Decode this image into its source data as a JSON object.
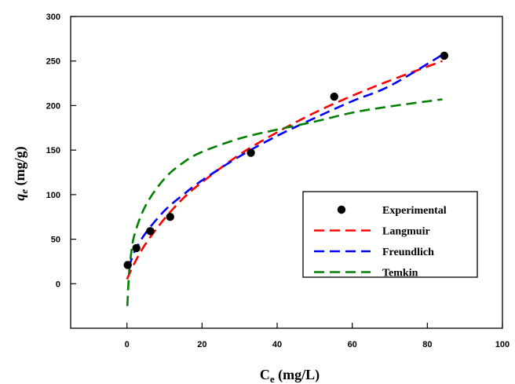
{
  "chart_data": {
    "type": "scatter",
    "title": "",
    "xlabel": {
      "main": "C",
      "sub": "e",
      "unit": " (mg/L)"
    },
    "ylabel": {
      "main": "q",
      "sub": "e",
      "unit": " (mg/g)"
    },
    "xlim": [
      -15,
      100
    ],
    "ylim": [
      -50,
      300
    ],
    "xticks": [
      0,
      20,
      40,
      60,
      80,
      100
    ],
    "yticks": [
      0,
      50,
      100,
      150,
      200,
      250,
      300
    ],
    "grid": false,
    "legend_position": "lower-right",
    "series": [
      {
        "name": "Experimental",
        "kind": "scatter",
        "color": "#000000",
        "x": [
          0.2,
          2.5,
          6.2,
          11.5,
          33.0,
          55.2,
          84.5
        ],
        "y": [
          21,
          40,
          59,
          75,
          147,
          210,
          256
        ]
      },
      {
        "name": "Langmuir",
        "kind": "dashed-line",
        "color": "#ff0000",
        "x": [
          0,
          2,
          5,
          10,
          15,
          20,
          30,
          40,
          50,
          60,
          70,
          84
        ],
        "y": [
          5,
          23,
          45,
          73,
          96,
          114,
          145,
          170,
          192,
          211,
          228,
          250
        ]
      },
      {
        "name": "Freundlich",
        "kind": "dashed-line",
        "color": "#0000ff",
        "x": [
          0.5,
          2,
          5,
          10,
          15,
          20,
          30,
          40,
          50,
          60,
          70,
          84
        ],
        "y": [
          18,
          36,
          57,
          82,
          100,
          116,
          143,
          166,
          186,
          205,
          222,
          257
        ]
      },
      {
        "name": "Temkin",
        "kind": "dashed-line",
        "color": "#008000",
        "x": [
          0.1,
          0.5,
          1,
          2,
          5,
          10,
          15,
          20,
          30,
          40,
          50,
          60,
          70,
          84
        ],
        "y": [
          -25,
          8,
          30,
          55,
          88,
          118,
          136,
          148,
          163,
          173,
          182,
          192,
          199,
          207
        ]
      }
    ]
  }
}
